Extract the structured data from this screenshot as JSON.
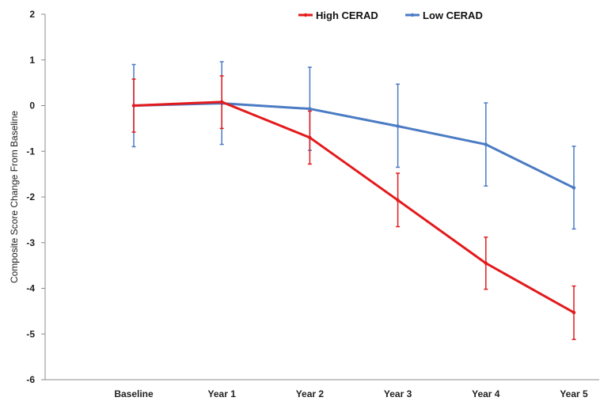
{
  "chart_data": {
    "type": "line",
    "title": "",
    "xlabel": "",
    "ylabel": "Composite Score Change From Baseline",
    "categories": [
      "Baseline",
      "Year 1",
      "Year 2",
      "Year 3",
      "Year 4",
      "Year 5"
    ],
    "ylim": [
      -6,
      2
    ],
    "yticks": [
      2,
      1,
      0,
      -1,
      -2,
      -3,
      -4,
      -5,
      -6
    ],
    "grid": false,
    "legend_position": "top-right",
    "series": [
      {
        "name": "High CERAD",
        "color": "#e31a1c",
        "values": [
          0,
          0.08,
          -0.7,
          -2.07,
          -3.45,
          -4.53
        ],
        "error_low": [
          -0.58,
          -0.5,
          -1.28,
          -2.65,
          -4.02,
          -5.12
        ],
        "error_high": [
          0.58,
          0.65,
          -0.12,
          -1.48,
          -2.88,
          -3.95
        ]
      },
      {
        "name": "Low CERAD",
        "color": "#4a7bc4",
        "values": [
          0,
          0.05,
          -0.07,
          -0.45,
          -0.85,
          -1.8
        ],
        "error_low": [
          -0.9,
          -0.85,
          -0.98,
          -1.35,
          -1.76,
          -2.7
        ],
        "error_high": [
          0.9,
          0.96,
          0.84,
          0.47,
          0.06,
          -0.89
        ]
      }
    ]
  }
}
